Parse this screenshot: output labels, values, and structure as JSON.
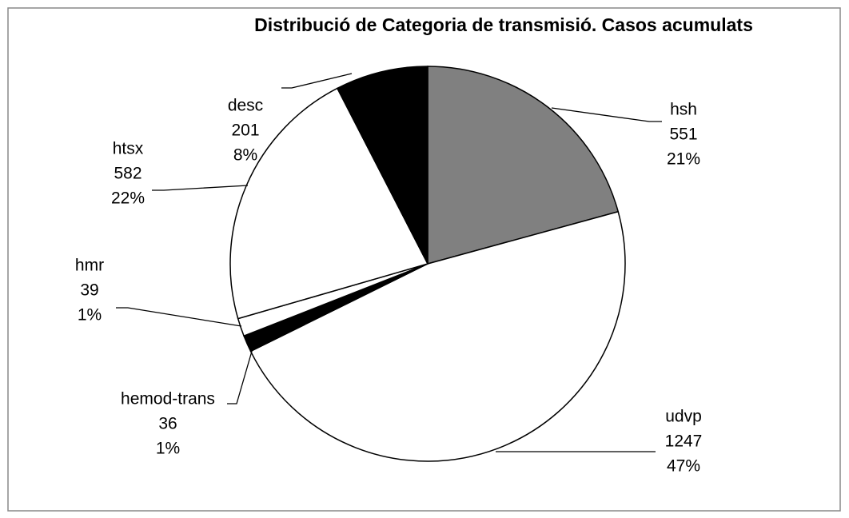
{
  "chart_data": {
    "type": "pie",
    "title": "Distribució de Categoria de transmisió.  Casos acumulats",
    "categories": [
      "hsh",
      "udvp",
      "hemod-trans",
      "hmr",
      "htsx",
      "desc"
    ],
    "values": [
      551,
      1247,
      36,
      39,
      582,
      201
    ],
    "percent_labels": [
      "21%",
      "47%",
      "1%",
      "1%",
      "22%",
      "8%"
    ],
    "colors": [
      "#808080",
      "#ffffff",
      "#000000",
      "#ffffff",
      "#ffffff",
      "#000000"
    ]
  }
}
